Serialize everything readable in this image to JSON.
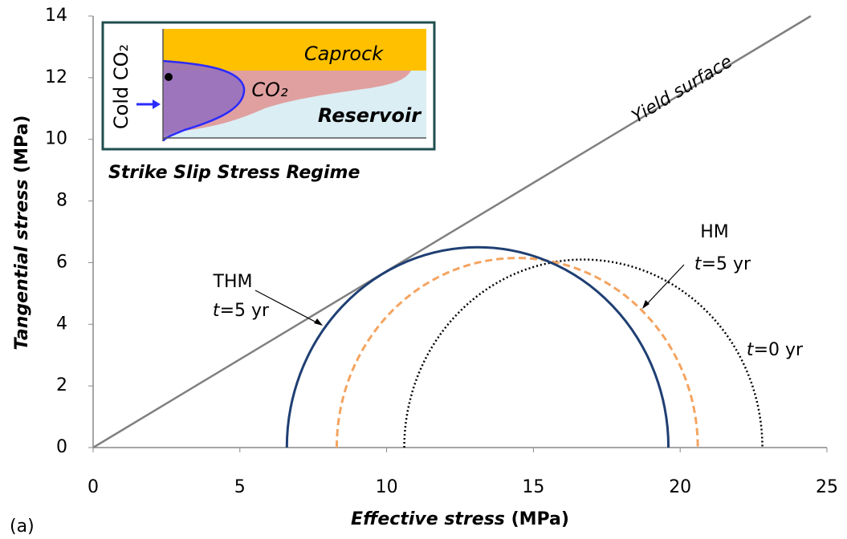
{
  "chart_data": {
    "type": "mohr",
    "x_label": "Effective stress (MPa)",
    "y_label": "Tangential stress (MPa)",
    "xlim": [
      0,
      25
    ],
    "xticks": [
      0,
      5,
      10,
      15,
      20,
      25
    ],
    "ylim": [
      0,
      14
    ],
    "yticks": [
      0,
      2,
      4,
      6,
      8,
      10,
      12,
      14
    ],
    "line": {
      "name": "Yield surface",
      "color": "#808080",
      "x": [
        0,
        24.45
      ],
      "values": [
        0,
        14
      ]
    },
    "circles": [
      {
        "name": "t=0 yr",
        "color": "#000000",
        "dash": "dotted",
        "center": 16.7,
        "radius": 6.1
      },
      {
        "name": "HM t=5 yr",
        "color": "#f4a460",
        "dash": "dashed",
        "center": 14.45,
        "radius": 6.15
      },
      {
        "name": "THM t=5 yr",
        "color": "#1f3f73",
        "dash": "solid",
        "center": 13.1,
        "radius": 6.5
      }
    ],
    "annotations": [
      "THM",
      "t=5 yr",
      "HM",
      "t=5 yr",
      "t=0 yr"
    ],
    "panel_label": "(a)",
    "inset": {
      "title": "Strike Slip Stress Regime",
      "caprock": "Caprock",
      "co2": "CO₂",
      "reservoir": "Reservoir",
      "injection": "Cold CO₂"
    }
  }
}
